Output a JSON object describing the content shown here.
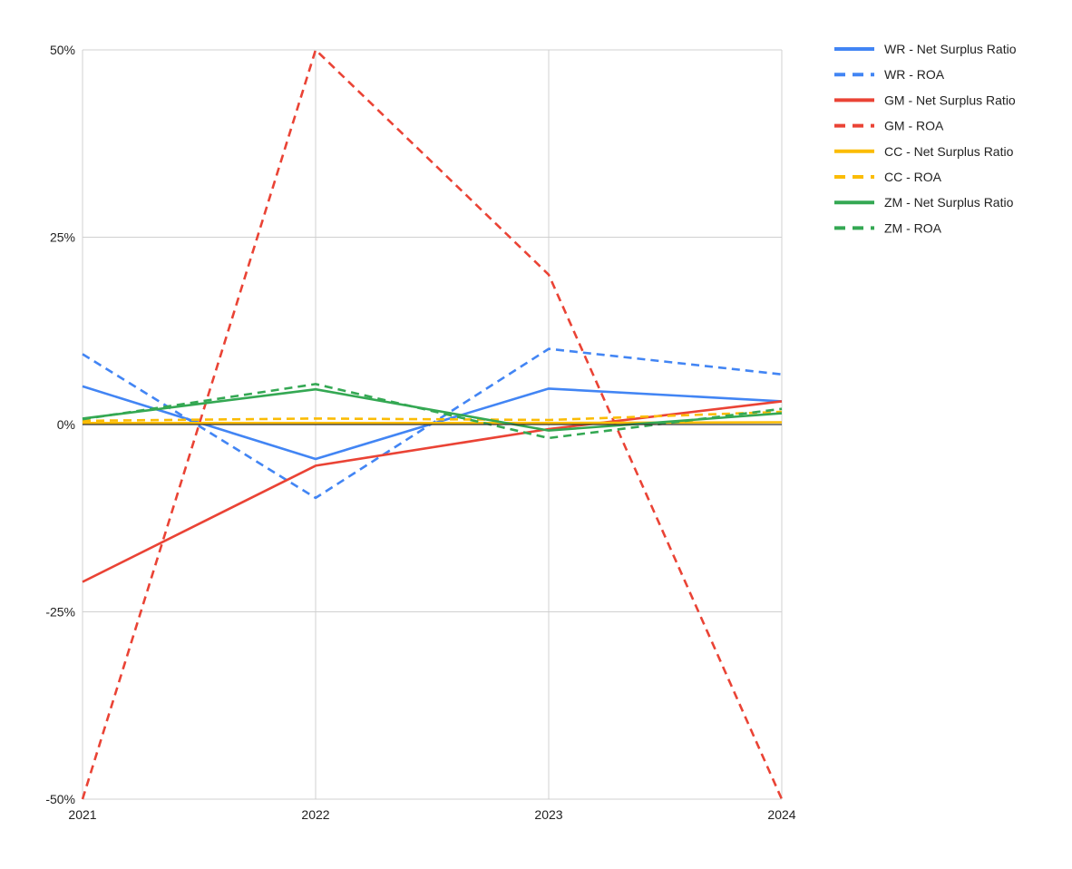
{
  "chart_data": {
    "type": "line",
    "title": "",
    "xlabel": "",
    "ylabel": "",
    "categories": [
      "2021",
      "2022",
      "2023",
      "2024"
    ],
    "ylim": [
      -0.5,
      0.5
    ],
    "yticks": [
      {
        "value": 0.5,
        "label": "50%"
      },
      {
        "value": 0.25,
        "label": "25%"
      },
      {
        "value": 0,
        "label": "0%"
      },
      {
        "value": -0.25,
        "label": "-25%"
      },
      {
        "value": -0.5,
        "label": "-50%"
      }
    ],
    "grid": true,
    "legend_position": "right",
    "series": [
      {
        "name": "WR - Net Surplus Ratio",
        "color": "#4285F4",
        "dashed": false,
        "values": [
          0.051,
          -0.046,
          0.048,
          0.031
        ]
      },
      {
        "name": "WR - ROA",
        "color": "#4285F4",
        "dashed": true,
        "values": [
          0.094,
          -0.098,
          0.101,
          0.067
        ]
      },
      {
        "name": "GM - Net Surplus Ratio",
        "color": "#EA4335",
        "dashed": false,
        "values": [
          -0.21,
          -0.055,
          -0.006,
          0.031
        ]
      },
      {
        "name": "GM - ROA",
        "color": "#EA4335",
        "dashed": true,
        "values": [
          -0.5,
          0.5,
          0.2,
          -0.5
        ]
      },
      {
        "name": "CC - Net Surplus Ratio",
        "color": "#FBBC04",
        "dashed": false,
        "values": [
          0.002,
          0.002,
          0.002,
          0.003
        ]
      },
      {
        "name": "CC - ROA",
        "color": "#FBBC04",
        "dashed": true,
        "values": [
          0.005,
          0.008,
          0.006,
          0.017
        ]
      },
      {
        "name": "ZM - Net Surplus Ratio",
        "color": "#34A853",
        "dashed": false,
        "values": [
          0.008,
          0.047,
          -0.008,
          0.015
        ]
      },
      {
        "name": "ZM - ROA",
        "color": "#34A853",
        "dashed": true,
        "values": [
          0.007,
          0.054,
          -0.018,
          0.021
        ]
      }
    ]
  }
}
